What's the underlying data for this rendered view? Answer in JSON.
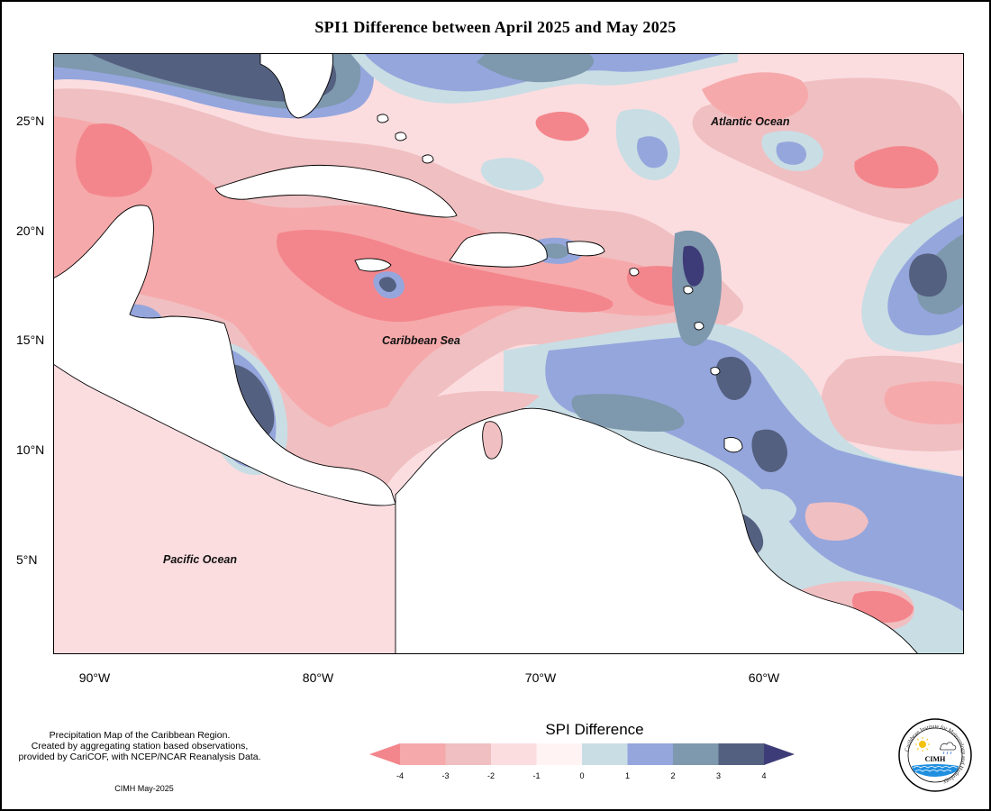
{
  "title": "SPI1 Difference between April 2025 and May 2025",
  "axes": {
    "lat_ticks": [
      "25°N",
      "20°N",
      "15°N",
      "10°N",
      "5°N"
    ],
    "lon_ticks": [
      "90°W",
      "80°W",
      "70°W",
      "60°W"
    ]
  },
  "labels": {
    "atlantic": "Atlantic Ocean",
    "caribbean": "Caribbean Sea",
    "pacific": "Pacific Ocean"
  },
  "legend": {
    "title": "SPI Difference",
    "ticks": [
      "-4",
      "-3",
      "-2",
      "-1",
      "0",
      "1",
      "2",
      "3",
      "4"
    ],
    "colors": [
      "#f3868c",
      "#f6a9ab",
      "#f0bfc1",
      "#fbdde0",
      "#fff3f3",
      "#c9dde4",
      "#95a6dd",
      "#7e98ad",
      "#54607f",
      "#3e3c78"
    ]
  },
  "footnote": {
    "line1": "Precipitation Map of the Caribbean Region.",
    "line2": "Created by aggregating station based observations,",
    "line3": "provided by CariCOF, with NCEP/NCAR Reanalysis Data.",
    "stamp": "CIMH May-2025"
  },
  "logo": {
    "text": "CIMH",
    "ring_text": "Caribbean Institute for Meteorology and Hydrology"
  }
}
